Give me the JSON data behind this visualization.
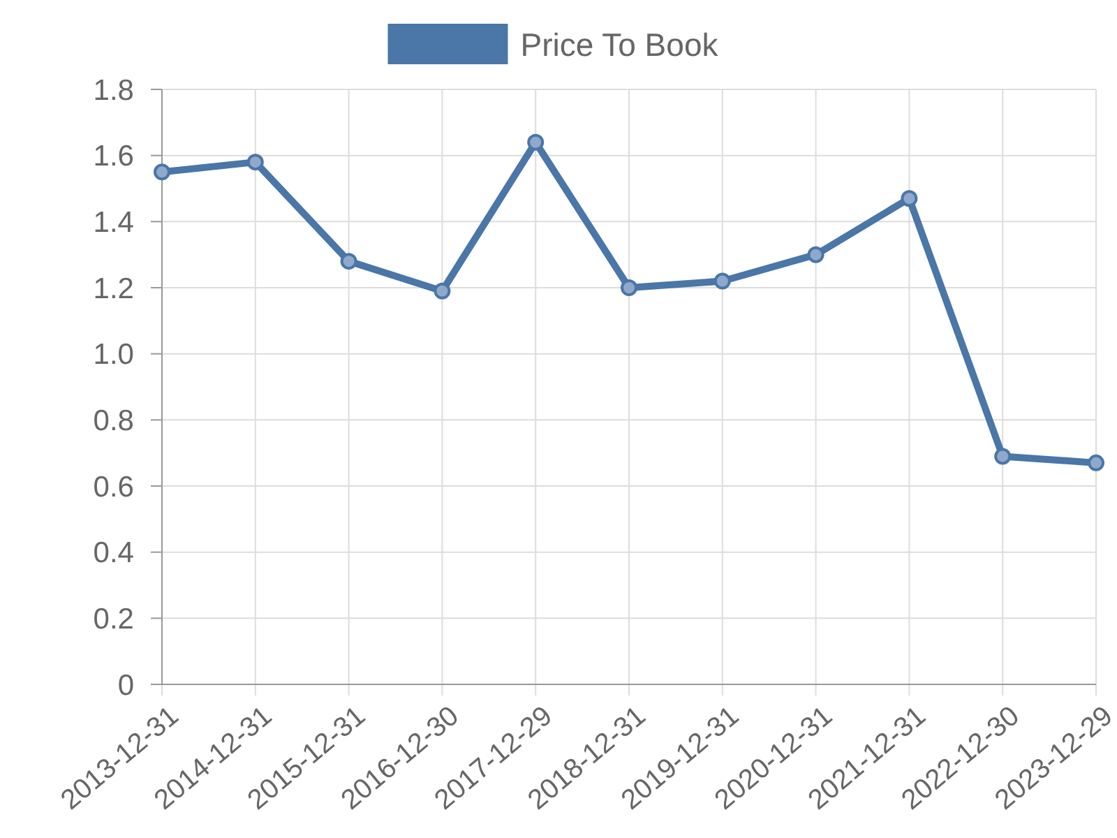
{
  "chart_data": {
    "type": "line",
    "categories": [
      "2013-12-31",
      "2014-12-31",
      "2015-12-31",
      "2016-12-30",
      "2017-12-29",
      "2018-12-31",
      "2019-12-31",
      "2020-12-31",
      "2021-12-31",
      "2022-12-30",
      "2023-12-29"
    ],
    "series": [
      {
        "name": "Price To Book",
        "color": "#4a76a8",
        "values": [
          1.55,
          1.58,
          1.28,
          1.19,
          1.64,
          1.2,
          1.22,
          1.3,
          1.47,
          0.69,
          0.67
        ]
      }
    ],
    "ylim": [
      0,
      1.8
    ],
    "yticks": [
      0,
      {
        "value": 0.2,
        "label": "0.2"
      },
      {
        "value": 0.4,
        "label": "0.4"
      },
      {
        "value": 0.6,
        "label": "0.6"
      },
      {
        "value": 0.8,
        "label": "0.8"
      },
      {
        "value": 1,
        "label": "1.0"
      },
      {
        "value": 1.2,
        "label": "1.2"
      },
      {
        "value": 1.4,
        "label": "1.4"
      },
      {
        "value": 1.6,
        "label": "1.6"
      },
      {
        "value": 1.8,
        "label": "1.8"
      }
    ],
    "grid": true,
    "legend": "top",
    "marker": "circle",
    "line_style": "solid"
  }
}
